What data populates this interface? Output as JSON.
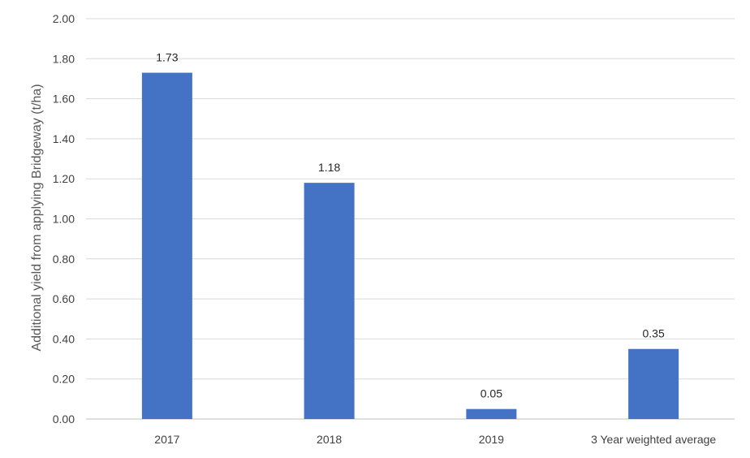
{
  "chart_data": {
    "type": "bar",
    "title": "",
    "xlabel": "",
    "ylabel": "Additional yield from applying Bridgeway (t/ha)",
    "categories": [
      "2017",
      "2018",
      "2019",
      "3 Year weighted average"
    ],
    "values": [
      1.73,
      1.18,
      0.05,
      0.35
    ],
    "data_labels": [
      "1.73",
      "1.18",
      "0.05",
      "0.35"
    ],
    "ylim": [
      0,
      2.0
    ],
    "y_ticks": [
      0,
      0.2,
      0.4,
      0.6,
      0.8,
      1.0,
      1.2,
      1.4,
      1.6,
      1.8,
      2.0
    ],
    "y_tick_labels": [
      "0.00",
      "0.20",
      "0.40",
      "0.60",
      "0.80",
      "1.00",
      "1.20",
      "1.40",
      "1.60",
      "1.80",
      "2.00"
    ],
    "grid": true,
    "legend": "none",
    "bar_color": "#4472C4"
  }
}
